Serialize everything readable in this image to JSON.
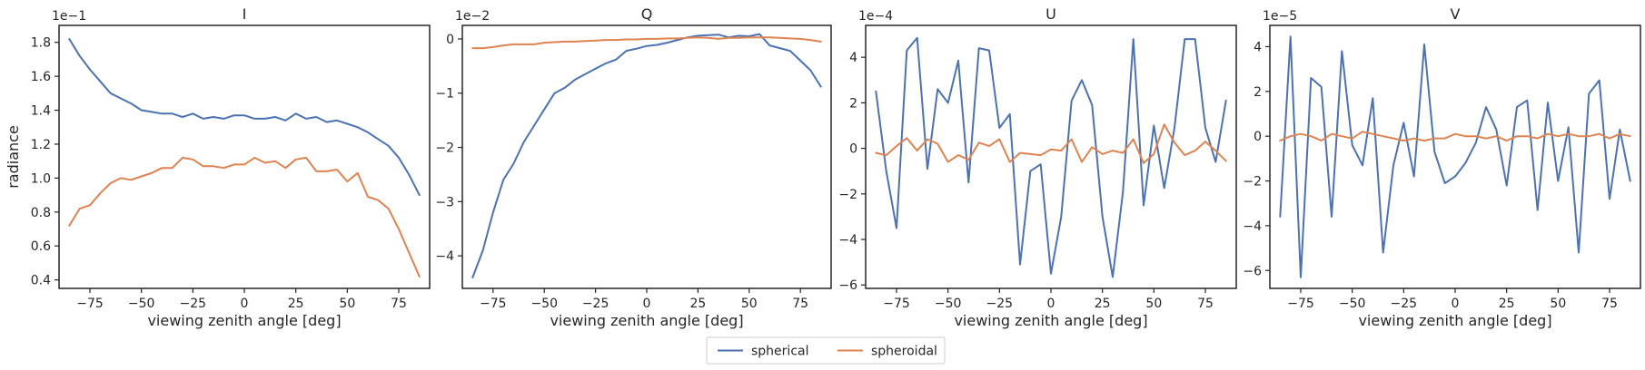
{
  "legend": {
    "placement": "bottom-center",
    "entries": [
      {
        "name": "spherical",
        "color": "#4c72b0"
      },
      {
        "name": "spheroidal",
        "color": "#dd8452"
      }
    ]
  },
  "chart_data": [
    {
      "type": "line",
      "title": "I",
      "xlabel": "viewing zenith angle [deg]",
      "ylabel": "radiance",
      "offset_text": "1e−1",
      "xlim": [
        -90,
        90
      ],
      "ylim": [
        0.35,
        1.9
      ],
      "xticks": [
        -75,
        -50,
        -25,
        0,
        25,
        50,
        75
      ],
      "yticks": [
        0.4,
        0.6,
        0.8,
        1.0,
        1.2,
        1.4,
        1.6,
        1.8
      ],
      "ytick_labels": [
        "0.4",
        "0.6",
        "0.8",
        "1.0",
        "1.2",
        "1.4",
        "1.6",
        "1.8"
      ],
      "x": [
        -85,
        -80,
        -75,
        -70,
        -65,
        -60,
        -55,
        -50,
        -45,
        -40,
        -35,
        -30,
        -25,
        -20,
        -15,
        -10,
        -5,
        0,
        5,
        10,
        15,
        20,
        25,
        30,
        35,
        40,
        45,
        50,
        55,
        60,
        65,
        70,
        75,
        80,
        85
      ],
      "series": [
        {
          "name": "spherical",
          "color": "#4c72b0",
          "values": [
            1.82,
            1.72,
            1.64,
            1.57,
            1.5,
            1.47,
            1.44,
            1.4,
            1.39,
            1.38,
            1.38,
            1.36,
            1.38,
            1.35,
            1.36,
            1.35,
            1.37,
            1.37,
            1.35,
            1.35,
            1.36,
            1.34,
            1.38,
            1.35,
            1.36,
            1.33,
            1.34,
            1.32,
            1.3,
            1.27,
            1.23,
            1.19,
            1.12,
            1.02,
            0.9
          ]
        },
        {
          "name": "spheroidal",
          "color": "#dd8452",
          "values": [
            0.72,
            0.82,
            0.84,
            0.91,
            0.97,
            1.0,
            0.99,
            1.01,
            1.03,
            1.06,
            1.06,
            1.12,
            1.11,
            1.07,
            1.07,
            1.06,
            1.08,
            1.08,
            1.12,
            1.09,
            1.1,
            1.06,
            1.11,
            1.12,
            1.04,
            1.04,
            1.05,
            0.98,
            1.03,
            0.89,
            0.87,
            0.82,
            0.7,
            0.56,
            0.42
          ]
        }
      ]
    },
    {
      "type": "line",
      "title": "Q",
      "xlabel": "viewing zenith angle [deg]",
      "ylabel": "",
      "offset_text": "1e−2",
      "xlim": [
        -90,
        90
      ],
      "ylim": [
        -4.6,
        0.25
      ],
      "xticks": [
        -75,
        -50,
        -25,
        0,
        25,
        50,
        75
      ],
      "yticks": [
        -4,
        -3,
        -2,
        -1,
        0
      ],
      "ytick_labels": [
        "−4",
        "−3",
        "−2",
        "−1",
        "0"
      ],
      "x": [
        -85,
        -80,
        -75,
        -70,
        -65,
        -60,
        -55,
        -50,
        -45,
        -40,
        -35,
        -30,
        -25,
        -20,
        -15,
        -10,
        -5,
        0,
        5,
        10,
        15,
        20,
        25,
        30,
        35,
        40,
        45,
        50,
        55,
        60,
        65,
        70,
        75,
        80,
        85
      ],
      "series": [
        {
          "name": "spherical",
          "color": "#4c72b0",
          "values": [
            -4.4,
            -3.9,
            -3.2,
            -2.6,
            -2.3,
            -1.9,
            -1.6,
            -1.3,
            -1.0,
            -0.9,
            -0.75,
            -0.65,
            -0.55,
            -0.45,
            -0.38,
            -0.22,
            -0.18,
            -0.13,
            -0.11,
            -0.07,
            -0.02,
            0.03,
            0.06,
            0.07,
            0.08,
            0.03,
            0.06,
            0.05,
            0.09,
            -0.12,
            -0.17,
            -0.22,
            -0.4,
            -0.58,
            -0.88
          ]
        },
        {
          "name": "spheroidal",
          "color": "#dd8452",
          "values": [
            -0.17,
            -0.17,
            -0.15,
            -0.12,
            -0.1,
            -0.1,
            -0.1,
            -0.07,
            -0.06,
            -0.05,
            -0.05,
            -0.04,
            -0.03,
            -0.02,
            -0.02,
            -0.01,
            -0.01,
            0.0,
            0.0,
            0.01,
            0.01,
            0.02,
            0.03,
            0.02,
            0.0,
            0.02,
            0.02,
            0.03,
            0.03,
            0.03,
            0.02,
            0.01,
            0.0,
            -0.02,
            -0.05
          ]
        }
      ]
    },
    {
      "type": "line",
      "title": "U",
      "xlabel": "viewing zenith angle [deg]",
      "ylabel": "",
      "offset_text": "1e−4",
      "xlim": [
        -90,
        90
      ],
      "ylim": [
        -6.15,
        5.4
      ],
      "xticks": [
        -75,
        -50,
        -25,
        0,
        25,
        50,
        75
      ],
      "yticks": [
        -6,
        -4,
        -2,
        0,
        2,
        4
      ],
      "ytick_labels": [
        "−6",
        "−4",
        "−2",
        "0",
        "2",
        "4"
      ],
      "x": [
        -85,
        -80,
        -75,
        -70,
        -65,
        -60,
        -55,
        -50,
        -45,
        -40,
        -35,
        -30,
        -25,
        -20,
        -15,
        -10,
        -5,
        0,
        5,
        10,
        15,
        20,
        25,
        30,
        35,
        40,
        45,
        50,
        55,
        60,
        65,
        70,
        75,
        80,
        85
      ],
      "series": [
        {
          "name": "spherical",
          "color": "#4c72b0",
          "values": [
            2.5,
            -1.0,
            -3.5,
            4.3,
            4.85,
            -0.9,
            2.6,
            2.0,
            3.85,
            -1.5,
            4.4,
            4.3,
            0.9,
            1.5,
            -5.1,
            -1.0,
            -0.7,
            -5.5,
            -3.0,
            2.1,
            3.0,
            1.9,
            -3.0,
            -5.65,
            -1.9,
            4.8,
            -2.5,
            1.0,
            -1.75,
            0.9,
            4.8,
            4.8,
            0.9,
            -0.6,
            2.1
          ]
        },
        {
          "name": "spheroidal",
          "color": "#dd8452",
          "values": [
            -0.2,
            -0.3,
            0.1,
            0.45,
            -0.1,
            0.4,
            0.2,
            -0.6,
            -0.3,
            -0.5,
            0.25,
            0.1,
            0.4,
            -0.6,
            -0.2,
            -0.25,
            -0.3,
            -0.05,
            -0.1,
            0.4,
            -0.6,
            0.05,
            -0.25,
            -0.1,
            -0.2,
            0.4,
            -0.65,
            -0.25,
            1.05,
            0.25,
            -0.3,
            -0.1,
            0.3,
            -0.1,
            -0.55
          ]
        }
      ]
    },
    {
      "type": "line",
      "title": "V",
      "xlabel": "viewing zenith angle [deg]",
      "ylabel": "",
      "offset_text": "1e−5",
      "xlim": [
        -90,
        90
      ],
      "ylim": [
        -6.8,
        4.95
      ],
      "xticks": [
        -75,
        -50,
        -25,
        0,
        25,
        50,
        75
      ],
      "yticks": [
        -6,
        -4,
        -2,
        0,
        2,
        4
      ],
      "ytick_labels": [
        "−6",
        "−4",
        "−2",
        "0",
        "2",
        "4"
      ],
      "x": [
        -85,
        -80,
        -75,
        -70,
        -65,
        -60,
        -55,
        -50,
        -45,
        -40,
        -35,
        -30,
        -25,
        -20,
        -15,
        -10,
        -5,
        0,
        5,
        10,
        15,
        20,
        25,
        30,
        35,
        40,
        45,
        50,
        55,
        60,
        65,
        70,
        75,
        80,
        85
      ],
      "series": [
        {
          "name": "spherical",
          "color": "#4c72b0",
          "values": [
            -3.6,
            4.45,
            -6.3,
            2.6,
            2.2,
            -3.6,
            3.8,
            -0.4,
            -1.3,
            1.7,
            -5.2,
            -1.3,
            0.6,
            -1.8,
            4.1,
            -0.7,
            -2.1,
            -1.8,
            -1.2,
            -0.3,
            1.3,
            0.3,
            -2.2,
            1.3,
            1.6,
            -3.3,
            1.5,
            -2.0,
            0.4,
            -5.2,
            1.9,
            2.5,
            -2.8,
            0.3,
            -2.0
          ]
        },
        {
          "name": "spheroidal",
          "color": "#dd8452",
          "values": [
            -0.2,
            0.0,
            0.1,
            0.0,
            -0.2,
            0.1,
            0.0,
            -0.1,
            0.2,
            0.1,
            0.0,
            -0.1,
            -0.2,
            -0.1,
            -0.2,
            -0.1,
            -0.1,
            0.1,
            0.0,
            0.0,
            -0.1,
            0.0,
            -0.2,
            0.0,
            0.0,
            -0.1,
            0.1,
            0.0,
            0.1,
            0.0,
            0.0,
            0.1,
            -0.1,
            0.1,
            0.0
          ]
        }
      ]
    }
  ]
}
